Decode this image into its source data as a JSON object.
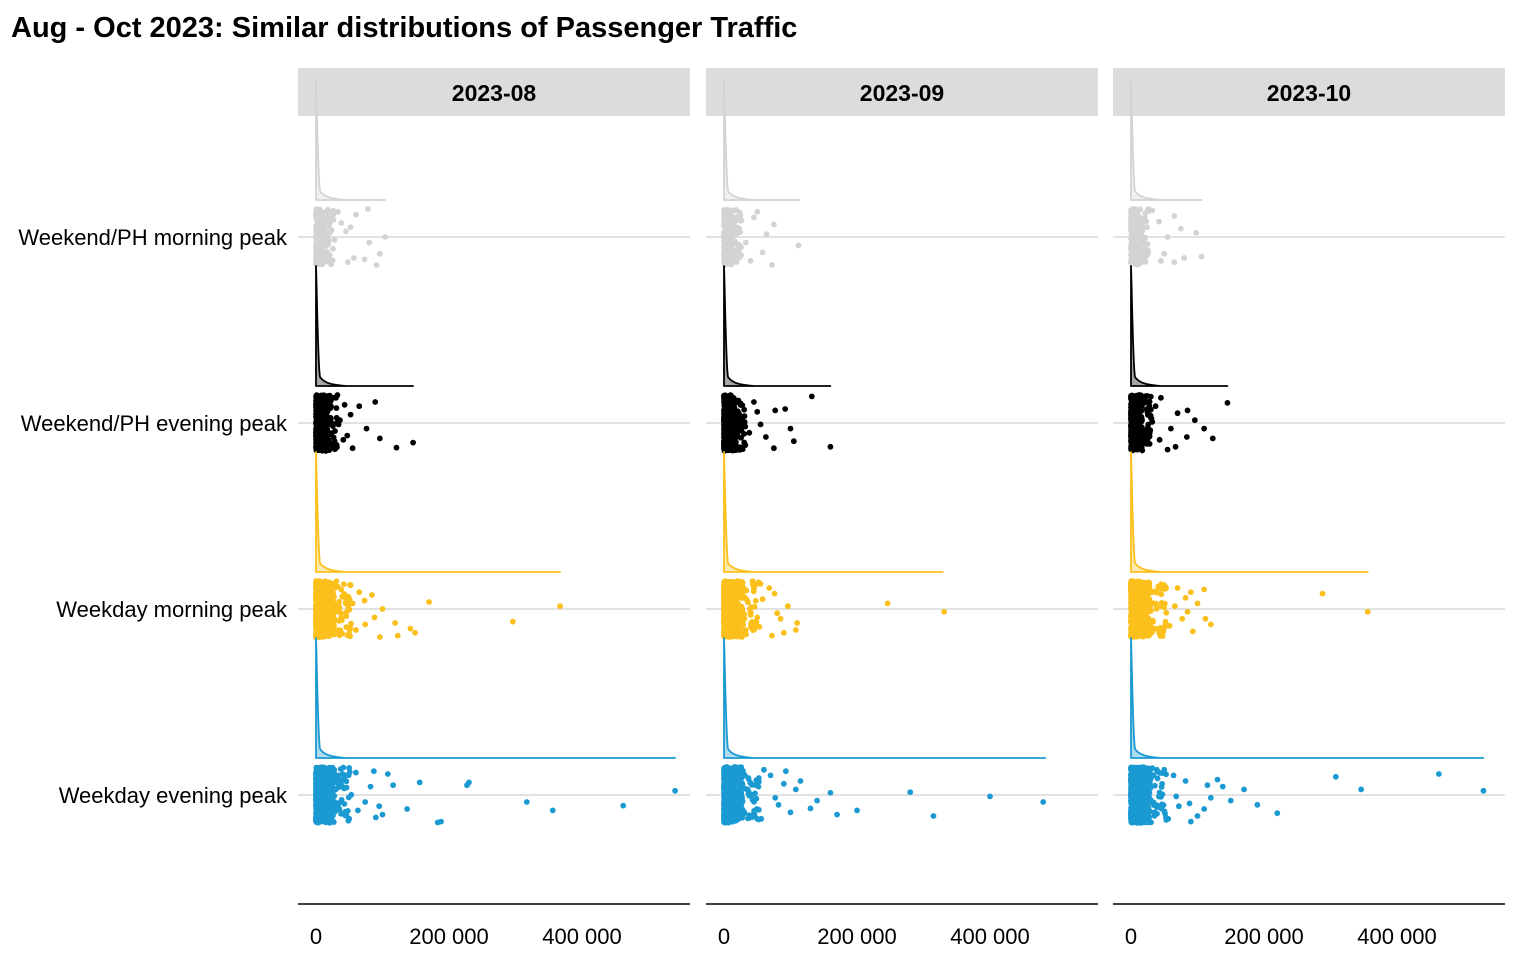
{
  "chart_data": {
    "type": "scatter",
    "subtype": "raincloud (half-density + jittered points), faceted",
    "title": "Aug - Oct 2023: Similar distributions of Passenger Traffic",
    "xlabel": "",
    "ylabel": "",
    "xlim": [
      0,
      560000
    ],
    "x_ticks": [
      0,
      200000,
      400000
    ],
    "x_tick_labels": [
      "0",
      "200 000",
      "400 000"
    ],
    "grid": "horizontal major only",
    "legend": "none",
    "facets": [
      "2023-08",
      "2023-09",
      "2023-10"
    ],
    "categories": [
      "Weekend/PH morning peak",
      "Weekend/PH evening peak",
      "Weekday morning peak",
      "Weekday evening peak"
    ],
    "series_colors": {
      "Weekend/PH morning peak": "#d3d3d3",
      "Weekend/PH evening peak": "#000000",
      "Weekday morning peak": "#fbc01c",
      "Weekday evening peak": "#1b9ad2"
    },
    "panels": [
      {
        "facet": "2023-08",
        "groups": [
          {
            "category": "Weekend/PH morning peak",
            "max": 104000,
            "outliers": [
              [
                91000,
                1.0
              ],
              [
                48000,
                0.9
              ],
              [
                57000,
                0.75
              ],
              [
                73000,
                0.8
              ],
              [
                80000,
                0.2
              ],
              [
                96000,
                0.6
              ],
              [
                104000,
                0.0
              ],
              [
                28000,
                0.1
              ],
              [
                45000,
                -0.2
              ],
              [
                38000,
                -0.5
              ],
              [
                60000,
                -0.8
              ],
              [
                78000,
                -1.0
              ],
              [
                33000,
                -0.9
              ],
              [
                52000,
                -0.35
              ]
            ]
          },
          {
            "category": "Weekend/PH evening peak",
            "max": 146000,
            "outliers": [
              [
                121000,
                0.88
              ],
              [
                146000,
                0.7
              ],
              [
                96000,
                0.55
              ],
              [
                76000,
                0.2
              ],
              [
                47000,
                0.45
              ],
              [
                55000,
                0.9
              ],
              [
                36000,
                -0.1
              ],
              [
                52000,
                -0.3
              ],
              [
                65000,
                -0.6
              ],
              [
                89000,
                -0.75
              ],
              [
                43000,
                -0.65
              ],
              [
                34000,
                0.05
              ],
              [
                30000,
                -0.9
              ],
              [
                41000,
                0.6
              ]
            ]
          },
          {
            "category": "Weekday morning peak",
            "max": 367000,
            "outliers": [
              [
                149000,
                0.85
              ],
              [
                142000,
                0.7
              ],
              [
                123000,
                0.95
              ],
              [
                119000,
                0.5
              ],
              [
                88000,
                0.3
              ],
              [
                96000,
                1.0
              ],
              [
                74000,
                0.55
              ],
              [
                60000,
                0.75
              ],
              [
                55000,
                -0.2
              ],
              [
                73000,
                -0.3
              ],
              [
                100000,
                0.0
              ],
              [
                84000,
                -0.5
              ],
              [
                170000,
                -0.25
              ],
              [
                296000,
                0.45
              ],
              [
                367000,
                -0.1
              ],
              [
                52000,
                -0.85
              ],
              [
                65000,
                -0.6
              ],
              [
                45000,
                -0.35
              ]
            ]
          },
          {
            "category": "Weekday evening peak",
            "max": 540000,
            "outliers": [
              [
                50000,
                0.85
              ],
              [
                100000,
                0.7
              ],
              [
                95000,
                0.4
              ],
              [
                74000,
                0.25
              ],
              [
                137000,
                0.5
              ],
              [
                82000,
                -0.3
              ],
              [
                116000,
                -0.35
              ],
              [
                156000,
                -0.45
              ],
              [
                188000,
                0.95
              ],
              [
                183000,
                0.98
              ],
              [
                230000,
                -0.45
              ],
              [
                227000,
                -0.35
              ],
              [
                317000,
                0.25
              ],
              [
                356000,
                0.55
              ],
              [
                462000,
                0.38
              ],
              [
                540000,
                -0.15
              ],
              [
                60000,
                -0.8
              ],
              [
                87000,
                -0.85
              ],
              [
                108000,
                -0.75
              ],
              [
                42000,
                -0.6
              ],
              [
                63000,
                0.55
              ],
              [
                90000,
                0.8
              ]
            ]
          }
        ]
      },
      {
        "facet": "2023-09",
        "groups": [
          {
            "category": "Weekend/PH morning peak",
            "max": 113000,
            "outliers": [
              [
                72000,
                1.0
              ],
              [
                58000,
                0.55
              ],
              [
                112000,
                0.3
              ],
              [
                64000,
                -0.1
              ],
              [
                75000,
                -0.45
              ],
              [
                45000,
                -0.7
              ],
              [
                33000,
                0.2
              ],
              [
                50000,
                -0.9
              ],
              [
                40000,
                0.85
              ]
            ]
          },
          {
            "category": "Weekend/PH evening peak",
            "max": 160000,
            "outliers": [
              [
                160000,
                0.85
              ],
              [
                105000,
                0.65
              ],
              [
                100000,
                0.2
              ],
              [
                75000,
                0.9
              ],
              [
                63000,
                0.5
              ],
              [
                55000,
                0.05
              ],
              [
                50000,
                -0.4
              ],
              [
                77000,
                -0.45
              ],
              [
                92000,
                -0.5
              ],
              [
                132000,
                -0.95
              ],
              [
                45000,
                -0.75
              ],
              [
                38000,
                0.35
              ]
            ]
          },
          {
            "category": "Weekday morning peak",
            "max": 329000,
            "outliers": [
              [
                331000,
                0.1
              ],
              [
                246000,
                -0.2
              ],
              [
                108000,
                0.75
              ],
              [
                110000,
                0.5
              ],
              [
                90000,
                0.85
              ],
              [
                72000,
                0.95
              ],
              [
                80000,
                0.15
              ],
              [
                96000,
                -0.1
              ],
              [
                76000,
                -0.55
              ],
              [
                58000,
                -0.35
              ],
              [
                68000,
                -0.75
              ],
              [
                50000,
                0.3
              ],
              [
                55000,
                -0.9
              ],
              [
                85000,
                0.35
              ]
            ]
          },
          {
            "category": "Weekday evening peak",
            "max": 483000,
            "outliers": [
              [
                315000,
                0.75
              ],
              [
                480000,
                0.25
              ],
              [
                400000,
                0.05
              ],
              [
                280000,
                -0.1
              ],
              [
                200000,
                0.55
              ],
              [
                170000,
                0.7
              ],
              [
                160000,
                -0.08
              ],
              [
                140000,
                0.2
              ],
              [
                130000,
                0.48
              ],
              [
                108000,
                -0.2
              ],
              [
                100000,
                0.62
              ],
              [
                90000,
                -0.4
              ],
              [
                82000,
                0.35
              ],
              [
                70000,
                -0.7
              ],
              [
                56000,
                0.85
              ],
              [
                60000,
                -0.9
              ],
              [
                77000,
                0.1
              ],
              [
                115000,
                -0.5
              ],
              [
                93000,
                -0.85
              ]
            ]
          }
        ]
      },
      {
        "facet": "2023-10",
        "groups": [
          {
            "category": "Weekend/PH morning peak",
            "max": 106000,
            "outliers": [
              [
                106000,
                0.7
              ],
              [
                80000,
                0.75
              ],
              [
                65000,
                0.9
              ],
              [
                50000,
                0.6
              ],
              [
                98000,
                -0.15
              ],
              [
                75000,
                -0.3
              ],
              [
                55000,
                0.0
              ],
              [
                42000,
                -0.55
              ],
              [
                65000,
                -0.75
              ],
              [
                32000,
                -0.95
              ],
              [
                45000,
                0.85
              ]
            ]
          },
          {
            "category": "Weekend/PH evening peak",
            "max": 145000,
            "outliers": [
              [
                123000,
                0.55
              ],
              [
                145000,
                -0.72
              ],
              [
                110000,
                0.2
              ],
              [
                84000,
                0.5
              ],
              [
                67000,
                0.85
              ],
              [
                55000,
                0.95
              ],
              [
                43000,
                0.6
              ],
              [
                60000,
                0.2
              ],
              [
                70000,
                -0.35
              ],
              [
                85000,
                -0.45
              ],
              [
                45000,
                -0.9
              ],
              [
                37000,
                -0.6
              ],
              [
                96000,
                -0.1
              ]
            ]
          },
          {
            "category": "Weekday morning peak",
            "max": 356000,
            "outliers": [
              [
                356000,
                0.1
              ],
              [
                288000,
                -0.55
              ],
              [
                120000,
                0.55
              ],
              [
                112000,
                0.35
              ],
              [
                93000,
                0.8
              ],
              [
                85000,
                0.1
              ],
              [
                77000,
                0.35
              ],
              [
                66000,
                -0.1
              ],
              [
                82000,
                -0.4
              ],
              [
                70000,
                -0.75
              ],
              [
                100000,
                -0.2
              ],
              [
                90000,
                -0.6
              ],
              [
                110000,
                -0.7
              ],
              [
                58000,
                0.6
              ],
              [
                50000,
                -0.85
              ]
            ]
          },
          {
            "category": "Weekday evening peak",
            "max": 530000,
            "outliers": [
              [
                530000,
                -0.15
              ],
              [
                463000,
                -0.75
              ],
              [
                346000,
                -0.2
              ],
              [
                308000,
                -0.65
              ],
              [
                220000,
                0.65
              ],
              [
                190000,
                0.35
              ],
              [
                170000,
                -0.2
              ],
              [
                150000,
                0.2
              ],
              [
                138000,
                -0.3
              ],
              [
                120000,
                0.1
              ],
              [
                110000,
                0.5
              ],
              [
                100000,
                0.75
              ],
              [
                90000,
                0.95
              ],
              [
                82000,
                -0.5
              ],
              [
                72000,
                0.4
              ],
              [
                64000,
                -0.7
              ],
              [
                56000,
                0.85
              ],
              [
                50000,
                -0.9
              ],
              [
                68000,
                0.05
              ],
              [
                88000,
                0.3
              ],
              [
                130000,
                -0.55
              ],
              [
                115000,
                -0.35
              ]
            ]
          }
        ]
      }
    ]
  }
}
